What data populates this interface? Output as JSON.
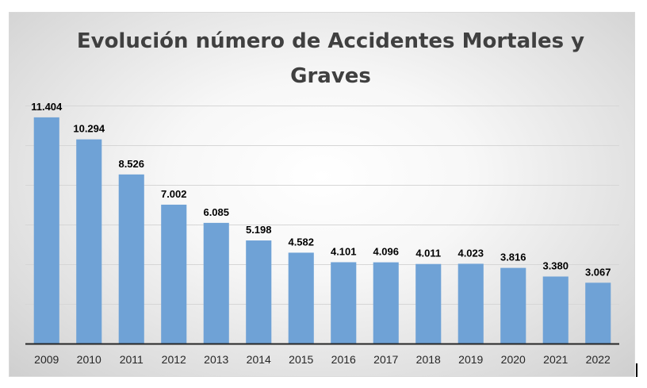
{
  "chart_data": {
    "type": "bar",
    "title": "Evolución número de Accidentes Mortales y Graves",
    "categories": [
      "2009",
      "2010",
      "2011",
      "2012",
      "2013",
      "2014",
      "2015",
      "2016",
      "2017",
      "2018",
      "2019",
      "2020",
      "2021",
      "2022"
    ],
    "values": [
      11404,
      10294,
      8526,
      7002,
      6085,
      5198,
      4582,
      4101,
      4096,
      4011,
      4023,
      3816,
      3380,
      3067
    ],
    "data_labels": [
      "11.404",
      "10.294",
      "8.526",
      "7.002",
      "6.085",
      "5.198",
      "4.582",
      "4.101",
      "4.096",
      "4.011",
      "4.023",
      "3.816",
      "3.380",
      "3.067"
    ],
    "ylim": [
      0,
      12000
    ],
    "grid": true,
    "show_y_tick_labels": false,
    "xlabel": "",
    "ylabel": "",
    "legend": "none",
    "colors": {
      "bar": "#6fa2d6",
      "grid": "#d6d6d6",
      "axis": "#262626",
      "title": "#404040",
      "label": "#000000"
    }
  }
}
